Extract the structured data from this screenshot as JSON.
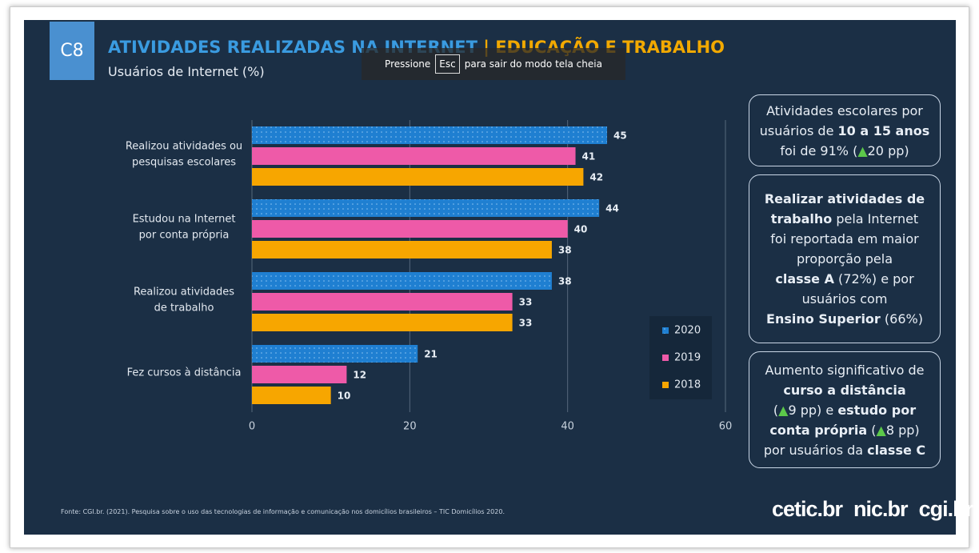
{
  "slide": {
    "badge": "C8",
    "title": [
      {
        "text": "ATIVIDADES REALIZADAS NA INTERNET",
        "color": "#3a9be0"
      },
      {
        "text": " | EDUCAÇÃO E TRABALHO",
        "color": "#f2a900"
      }
    ],
    "subtitle": "Usuários de Internet (%)",
    "overlay": {
      "before": "Pressione",
      "key": "Esc",
      "after": "para sair do modo tela cheia"
    },
    "source": "Fonte: CGI.br. (2021). Pesquisa sobre o uso das tecnologias de informação e comunicação nos domicílios brasileiros – TIC Domicílios 2020.",
    "logos": [
      "cetic.br",
      "nic.br",
      "cgi.br"
    ]
  },
  "callouts": [
    [
      [
        {
          "text": "Atividades escolares por"
        }
      ],
      [
        {
          "text": "usuários de "
        },
        {
          "text": "10 a 15 anos",
          "style": "bold"
        }
      ],
      [
        {
          "text": "foi de 91% ("
        },
        {
          "text": "▲",
          "style": "up"
        },
        {
          "text": "20 pp)"
        }
      ]
    ],
    [
      [
        {
          "text": "Realizar atividades de",
          "style": "bold"
        }
      ],
      [
        {
          "text": "trabalho",
          "style": "bold"
        },
        {
          "text": " pela Internet"
        }
      ],
      [
        {
          "text": "foi reportada em maior"
        }
      ],
      [
        {
          "text": "proporção pela"
        }
      ],
      [
        {
          "text": "classe A",
          "style": "bold"
        },
        {
          "text": " (72%) e por"
        }
      ],
      [
        {
          "text": "usuários com"
        }
      ],
      [
        {
          "text": "Ensino Superior",
          "style": "bold"
        },
        {
          "text": " (66%)"
        }
      ]
    ],
    [
      [
        {
          "text": "Aumento significativo de"
        }
      ],
      [
        {
          "text": "curso a distância",
          "style": "bold"
        }
      ],
      [
        {
          "text": "("
        },
        {
          "text": "▲",
          "style": "up"
        },
        {
          "text": "9 pp) e "
        },
        {
          "text": "estudo por",
          "style": "bold"
        }
      ],
      [
        {
          "text": "conta própria",
          "style": "bold"
        },
        {
          "text": " ("
        },
        {
          "text": "▲",
          "style": "up"
        },
        {
          "text": "8 pp)"
        }
      ],
      [
        {
          "text": "por usuários da "
        },
        {
          "text": "classe C",
          "style": "bold"
        }
      ]
    ]
  ],
  "chart_data": {
    "type": "bar",
    "orientation": "horizontal",
    "categories": [
      [
        "Realizou atividades ou",
        "pesquisas escolares"
      ],
      [
        "Estudou na Internet",
        "por conta própria"
      ],
      [
        "Realizou atividades",
        "de trabalho"
      ],
      [
        "Fez cursos à distância"
      ]
    ],
    "series": [
      {
        "name": "2020",
        "color": "#1f7fd1",
        "pattern": "dots",
        "values": [
          45,
          44,
          38,
          21
        ]
      },
      {
        "name": "2019",
        "color": "#ee5aa8",
        "values": [
          41,
          40,
          33,
          12
        ]
      },
      {
        "name": "2018",
        "color": "#f7a600",
        "values": [
          42,
          38,
          33,
          10
        ]
      }
    ],
    "xlim": [
      0,
      60
    ],
    "xticks": [
      0,
      20,
      40,
      60
    ],
    "grid": true
  }
}
